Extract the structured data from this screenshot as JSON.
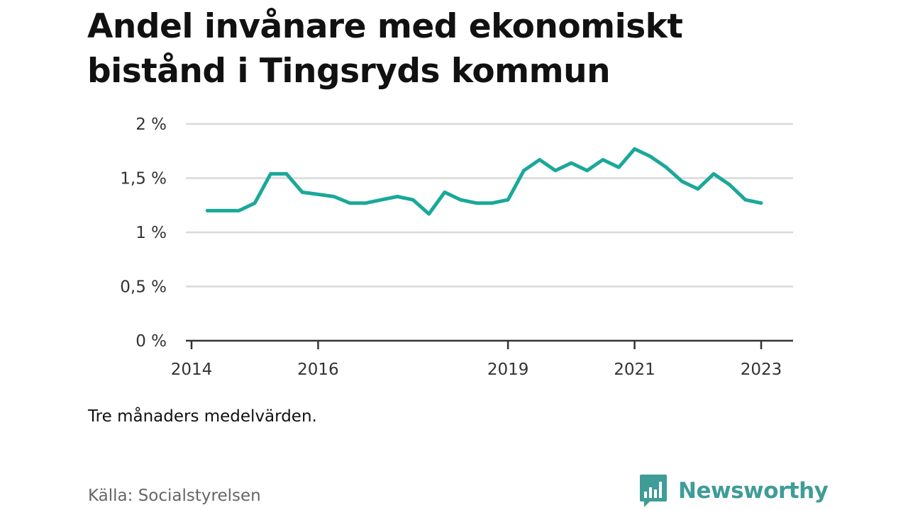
{
  "title": "Andel invånare med ekonomiskt bistånd i Tingsryds kommun",
  "note": "Tre månaders medelvärden.",
  "source": "Källa: Socialstyrelsen",
  "brand": {
    "name": "Newsworthy",
    "icon": "newsworthy-logo-icon",
    "color": "#3f9c97"
  },
  "chart_data": {
    "type": "line",
    "title": "Andel invånare med ekonomiskt bistånd i Tingsryds kommun",
    "xlabel": "",
    "ylabel": "",
    "x_ticks": [
      "2014",
      "2016",
      "2019",
      "2021",
      "2023"
    ],
    "y_ticks": [
      "0 %",
      "0,5 %",
      "1 %",
      "1,5 %",
      "2 %"
    ],
    "ylim": [
      0,
      2
    ],
    "grid": true,
    "line_color": "#1aa89a",
    "series": [
      {
        "x": [
          "2014-04",
          "2014-07",
          "2014-10",
          "2015-01",
          "2015-04",
          "2015-07",
          "2015-10",
          "2016-01",
          "2016-04",
          "2016-07",
          "2016-10",
          "2017-01",
          "2017-04",
          "2017-07",
          "2017-10",
          "2018-01",
          "2018-04",
          "2018-07",
          "2018-10",
          "2019-01",
          "2019-04",
          "2019-07",
          "2019-10",
          "2020-01",
          "2020-04",
          "2020-07",
          "2020-10",
          "2021-01",
          "2021-04",
          "2021-07",
          "2021-10",
          "2022-01",
          "2022-04",
          "2022-07",
          "2022-10",
          "2023-01"
        ],
        "values": [
          1.2,
          1.2,
          1.2,
          1.27,
          1.54,
          1.54,
          1.37,
          1.35,
          1.33,
          1.27,
          1.27,
          1.3,
          1.33,
          1.3,
          1.17,
          1.37,
          1.3,
          1.27,
          1.27,
          1.3,
          1.57,
          1.67,
          1.57,
          1.64,
          1.57,
          1.67,
          1.6,
          1.77,
          1.7,
          1.6,
          1.47,
          1.4,
          1.54,
          1.44,
          1.3,
          1.27
        ]
      }
    ]
  }
}
